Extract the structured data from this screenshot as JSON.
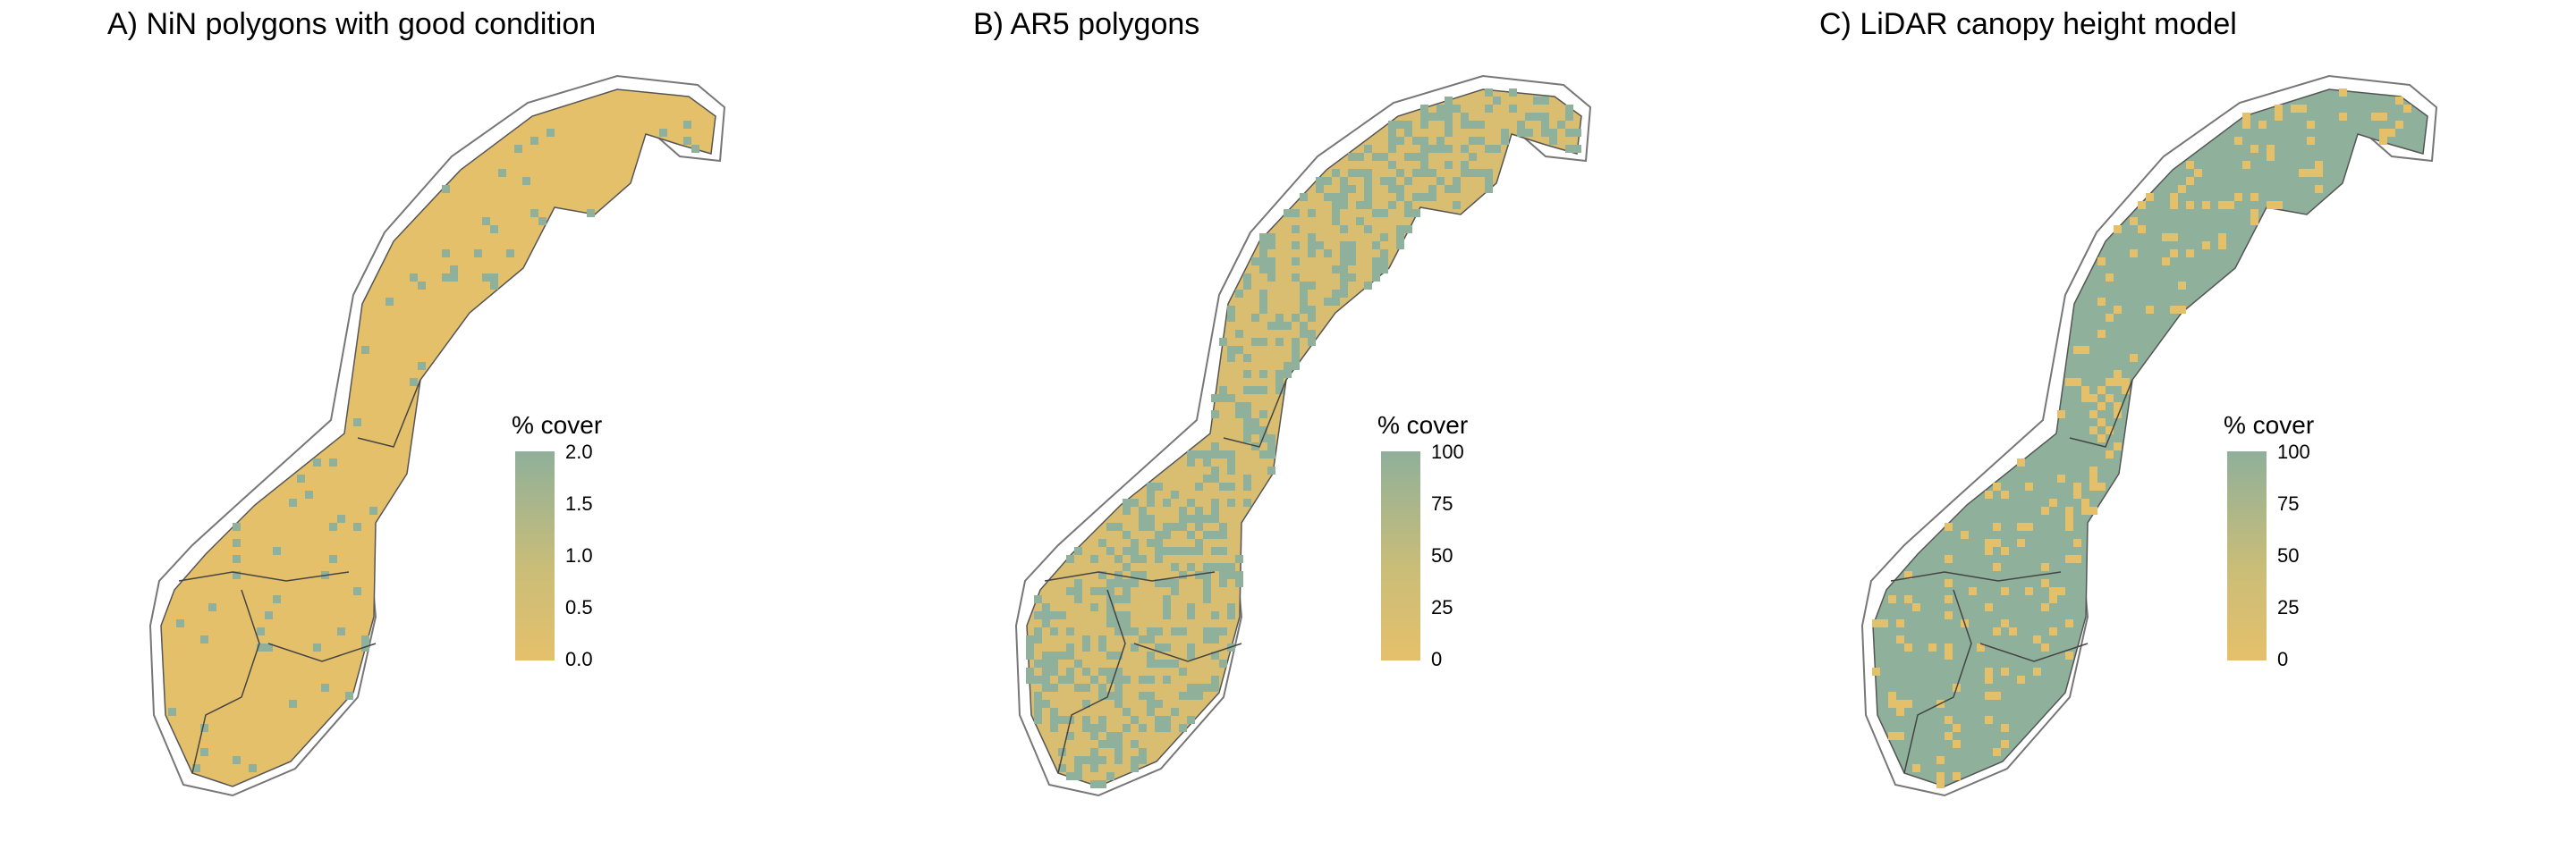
{
  "panels": [
    {
      "title": "A) NiN polygons with good condition",
      "legend": {
        "title": "% cover",
        "ticks": [
          "2.0",
          "1.5",
          "1.0",
          "0.5",
          "0.0"
        ]
      },
      "fill": "mostly-low",
      "base_color": "#e5c06b",
      "accent_color": "#8fb09a"
    },
    {
      "title": "B) AR5 polygons",
      "legend": {
        "title": "% cover",
        "ticks": [
          "100",
          "75",
          "50",
          "25",
          "0"
        ]
      },
      "fill": "mixed",
      "base_color": "#e5c06b",
      "accent_color": "#8fb09a"
    },
    {
      "title": "C) LiDAR canopy height model",
      "legend": {
        "title": "% cover",
        "ticks": [
          "100",
          "75",
          "50",
          "25",
          "0"
        ]
      },
      "fill": "mostly-high",
      "base_color": "#e5c06b",
      "accent_color": "#8fb09a"
    }
  ],
  "colors": {
    "low": "#e5c06b",
    "high": "#8fb09a",
    "outline": "#777777",
    "border": "#444444"
  }
}
